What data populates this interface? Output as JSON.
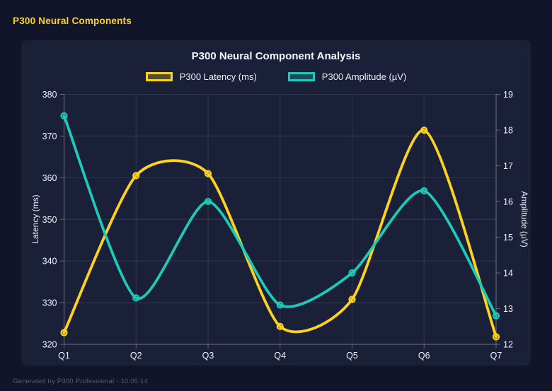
{
  "header": {
    "title": "P300 Neural Components"
  },
  "footer": {
    "text": "Generated by P300 Professional - 10:05:14"
  },
  "colors": {
    "accent_yellow": "#FFD21E",
    "accent_teal": "#1EC9B7",
    "page_bg": "#10152a",
    "panel_bg": "#1a2038",
    "grid": "rgba(255,255,255,0.10)",
    "axis_border": "rgba(255,255,255,0.30)",
    "tick_text": "#eef1f8",
    "muted_text": "#525c72"
  },
  "chart_data": {
    "type": "line",
    "title": "P300 Neural Component Analysis",
    "categories": [
      "Q1",
      "Q2",
      "Q3",
      "Q4",
      "Q5",
      "Q6",
      "Q7"
    ],
    "series": [
      {
        "name": "P300 Latency (ms)",
        "axis": "left",
        "color": "#FFD21E",
        "legend_fill": "rgba(255,210,30,0.25)",
        "marker_fill": "rgba(255,210,30,0.35)",
        "values": [
          322.8,
          360.5,
          361.0,
          324.3,
          330.8,
          371.4,
          321.8
        ]
      },
      {
        "name": "P300 Amplitude (µV)",
        "axis": "right",
        "color": "#1EC9B7",
        "legend_fill": "rgba(30,201,183,0.25)",
        "marker_fill": "rgba(30,201,183,0.35)",
        "values": [
          18.4,
          13.3,
          16.0,
          13.1,
          14.0,
          16.3,
          12.8
        ]
      }
    ],
    "y_left": {
      "label": "Latency (ms)",
      "min": 320,
      "max": 380,
      "tick_step": 10
    },
    "y_right": {
      "label": "Amplitude (µV)",
      "min": 12,
      "max": 19,
      "tick_step": 1
    },
    "grid": true,
    "legend_position": "top",
    "line_tension": 0.12
  }
}
